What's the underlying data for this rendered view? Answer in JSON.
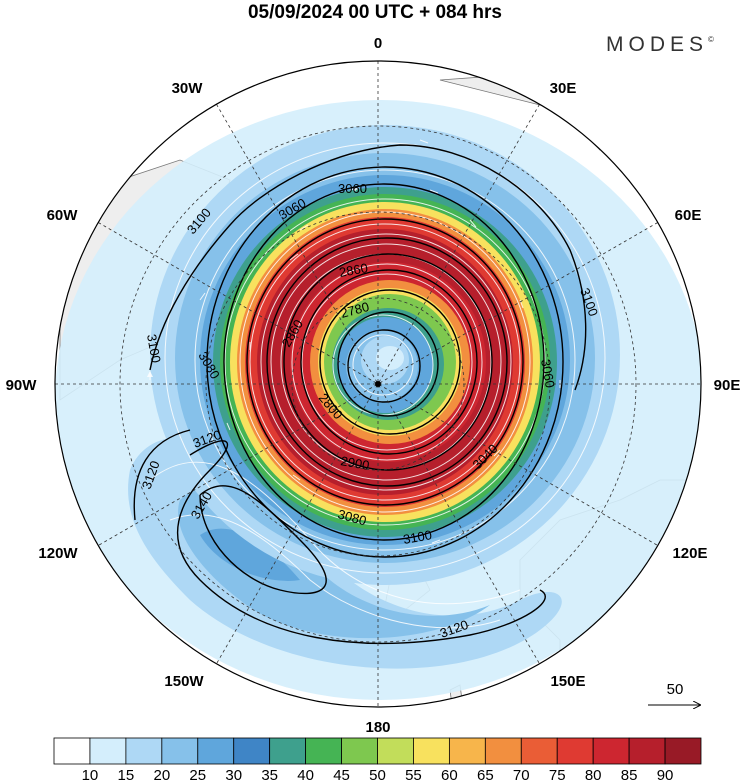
{
  "title": "05/09/2024  00 UTC  + 084 hrs",
  "logo": "MODES",
  "logo_mark": "©",
  "meridian_labels": {
    "n0": "0",
    "n30e": "30E",
    "n60e": "60E",
    "n90e": "90E",
    "n120e": "120E",
    "n150e": "150E",
    "n180": "180",
    "n150w": "150W",
    "n120w": "120W",
    "n90w": "90W",
    "n60w": "60W",
    "n30w": "30W"
  },
  "contour_labels": {
    "c3060a": "3060",
    "c3060b": "3060",
    "c3060c": "3060",
    "c3080a": "3080",
    "c3080b": "3080",
    "c3100a": "3100",
    "c3100b": "3100",
    "c3100c": "3100",
    "c3100d": "3100",
    "c3120a": "3120",
    "c3120b": "3120",
    "c3120c": "3120",
    "c3140": "3140",
    "c2780": "2780",
    "c2800": "2800",
    "c2860a": "2860",
    "c2860b": "2860",
    "c2900": "2900",
    "c3040": "3040"
  },
  "vector_reference": "50",
  "colorbar": {
    "colors": [
      "#ffffff",
      "#d4eefc",
      "#aed8f5",
      "#86c1ea",
      "#5fa6dc",
      "#3f85c6",
      "#3ea08d",
      "#45b454",
      "#7ec84f",
      "#c2dd5a",
      "#f8e15e",
      "#f7b54b",
      "#f28f3f",
      "#ea5d36",
      "#df3a32",
      "#cd2630",
      "#b61f2c",
      "#981a26"
    ],
    "tick_labels": [
      "10",
      "15",
      "20",
      "25",
      "30",
      "35",
      "40",
      "45",
      "50",
      "55",
      "60",
      "65",
      "70",
      "75",
      "80",
      "85",
      "90"
    ]
  }
}
